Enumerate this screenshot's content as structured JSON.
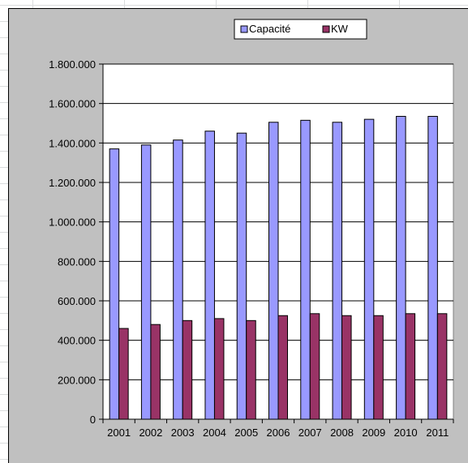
{
  "chart_data": {
    "type": "bar",
    "categories": [
      "2001",
      "2002",
      "2003",
      "2004",
      "2005",
      "2006",
      "2007",
      "2008",
      "2009",
      "2010",
      "2011"
    ],
    "series": [
      {
        "name": "Capacité",
        "color": "#9999ff",
        "values": [
          1370000,
          1390000,
          1415000,
          1460000,
          1450000,
          1505000,
          1515000,
          1505000,
          1520000,
          1535000,
          1535000
        ]
      },
      {
        "name": "KW",
        "color": "#993366",
        "values": [
          460000,
          480000,
          500000,
          510000,
          500000,
          525000,
          535000,
          525000,
          525000,
          535000,
          535000
        ]
      }
    ],
    "ylim": [
      0,
      1800000
    ],
    "yticks": [
      0,
      200000,
      400000,
      600000,
      800000,
      1000000,
      1200000,
      1400000,
      1600000,
      1800000
    ],
    "ytick_labels": [
      "0",
      "200.000",
      "400.000",
      "600.000",
      "800.000",
      "1.000.000",
      "1.200.000",
      "1.400.000",
      "1.600.000",
      "1.800.000"
    ],
    "title": "",
    "xlabel": "",
    "ylabel": "",
    "grid": true,
    "legend_position": "top"
  }
}
